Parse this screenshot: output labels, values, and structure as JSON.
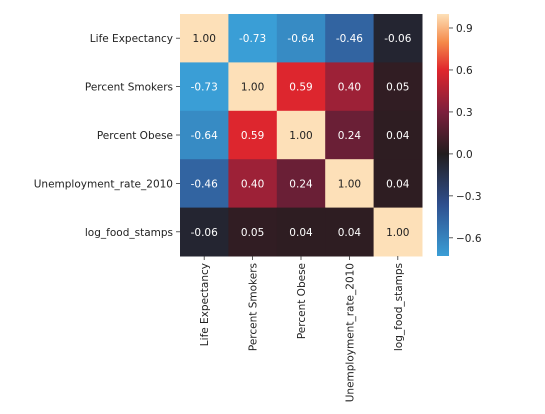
{
  "chart_data": {
    "type": "heatmap",
    "title": "",
    "xlabel": "",
    "ylabel": "",
    "rows": [
      "Life Expectancy",
      "Percent Smokers",
      "Percent Obese",
      "Unemployment_rate_2010",
      "log_food_stamps"
    ],
    "columns": [
      "Life Expectancy",
      "Percent Smokers",
      "Percent Obese",
      "Unemployment_rate_2010",
      "log_food_stamps"
    ],
    "values": [
      [
        1.0,
        -0.73,
        -0.64,
        -0.46,
        -0.06
      ],
      [
        -0.73,
        1.0,
        0.59,
        0.4,
        0.05
      ],
      [
        -0.64,
        0.59,
        1.0,
        0.24,
        0.04
      ],
      [
        -0.46,
        0.4,
        0.24,
        1.0,
        0.04
      ],
      [
        -0.06,
        0.05,
        0.04,
        0.04,
        1.0
      ]
    ],
    "cell_labels": [
      [
        "1.00",
        "-0.73",
        "-0.64",
        "-0.46",
        "-0.06"
      ],
      [
        "-0.73",
        "1.00",
        "0.59",
        "0.40",
        "0.05"
      ],
      [
        "-0.64",
        "0.59",
        "1.00",
        "0.24",
        "0.04"
      ],
      [
        "-0.46",
        "0.40",
        "0.24",
        "1.00",
        "0.04"
      ],
      [
        "-0.06",
        "0.05",
        "0.04",
        "0.04",
        "1.00"
      ]
    ],
    "colorbar": {
      "range": [
        -0.73,
        1.0
      ],
      "ticks": [
        0.9,
        0.6,
        0.3,
        0.0,
        -0.3,
        -0.6
      ],
      "tick_labels": [
        "0.9",
        "0.6",
        "0.3",
        "0.0",
        "−0.3",
        "−0.6"
      ],
      "colormap_stops": [
        {
          "v": -0.73,
          "color": "#3a9ed6"
        },
        {
          "v": -0.36,
          "color": "#2f4f8e"
        },
        {
          "v": 0.0,
          "color": "#221d1e"
        },
        {
          "v": 0.3,
          "color": "#7c1f3c"
        },
        {
          "v": 0.6,
          "color": "#e0262d"
        },
        {
          "v": 0.8,
          "color": "#f58a4a"
        },
        {
          "v": 1.0,
          "color": "#fde0b8"
        }
      ],
      "placement": "right"
    }
  }
}
